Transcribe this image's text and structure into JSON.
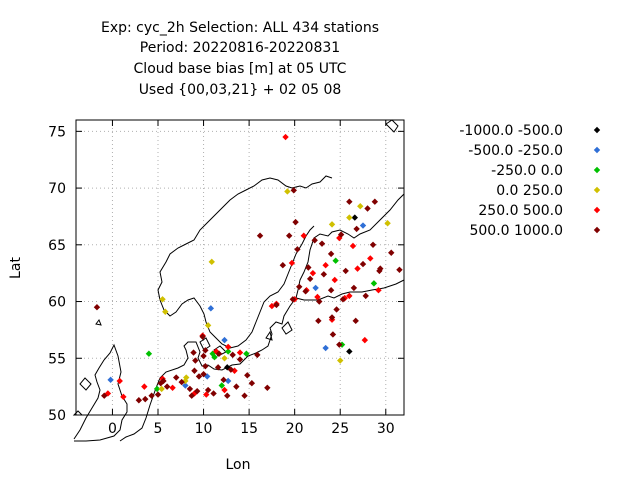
{
  "title_lines": [
    "Exp: cyc_2h   Selection: ALL    434 stations",
    "Period: 20220816-20220831",
    "Cloud base bias [m] at  05 UTC",
    "Used {00,03,21} + 02 05 08"
  ],
  "chart_data": {
    "type": "scatter",
    "xlabel": "Lon",
    "ylabel": "Lat",
    "xlim": [
      -4,
      32
    ],
    "ylim": [
      50,
      76
    ],
    "xticks": [
      0,
      5,
      10,
      15,
      20,
      25,
      30
    ],
    "yticks": [
      50,
      55,
      60,
      65,
      70,
      75
    ],
    "grid": true,
    "legend_position": "right",
    "series": [
      {
        "name": "-1000.0 -500.0",
        "color": "#000000",
        "points": [
          [
            26.6,
            67.4
          ],
          [
            26.0,
            55.6
          ],
          [
            12.6,
            54.2
          ]
        ]
      },
      {
        "name": "-500.0 -250.0",
        "color": "#2f6fd6",
        "points": [
          [
            -0.2,
            53.1
          ],
          [
            10.8,
            59.4
          ],
          [
            12.3,
            56.6
          ],
          [
            10.4,
            53.4
          ],
          [
            12.7,
            53.0
          ],
          [
            22.3,
            61.2
          ],
          [
            23.4,
            55.9
          ],
          [
            27.5,
            66.7
          ],
          [
            8.0,
            52.6
          ]
        ]
      },
      {
        "name": "-250.0 0.0",
        "color": "#00c000",
        "points": [
          [
            4.0,
            55.4
          ],
          [
            4.9,
            52.3
          ],
          [
            12.7,
            55.6
          ],
          [
            11.2,
            55.1
          ],
          [
            11.0,
            55.4
          ],
          [
            14.7,
            55.4
          ],
          [
            25.2,
            56.2
          ],
          [
            24.5,
            63.6
          ],
          [
            28.7,
            61.6
          ],
          [
            12.0,
            52.6
          ]
        ]
      },
      {
        "name": "0.0 250.0",
        "color": "#d0c000",
        "points": [
          [
            10.9,
            63.5
          ],
          [
            5.5,
            60.2
          ],
          [
            5.8,
            59.1
          ],
          [
            10.5,
            57.9
          ],
          [
            8.1,
            53.3
          ],
          [
            8.0,
            53.0
          ],
          [
            5.4,
            52.3
          ],
          [
            26.0,
            67.4
          ],
          [
            24.1,
            66.8
          ],
          [
            30.2,
            66.9
          ],
          [
            25.0,
            54.8
          ],
          [
            27.2,
            68.4
          ],
          [
            12.3,
            55.0
          ],
          [
            19.2,
            69.7
          ]
        ]
      },
      {
        "name": "250.0 500.0",
        "color": "#ff0000",
        "points": [
          [
            19.0,
            74.5
          ],
          [
            -0.5,
            51.9
          ],
          [
            0.8,
            53.0
          ],
          [
            1.2,
            51.6
          ],
          [
            3.5,
            52.5
          ],
          [
            5.5,
            53.2
          ],
          [
            6.6,
            52.4
          ],
          [
            9.0,
            51.9
          ],
          [
            10.3,
            51.8
          ],
          [
            12.3,
            52.2
          ],
          [
            13.4,
            53.9
          ],
          [
            11.4,
            55.6
          ],
          [
            14.0,
            55.5
          ],
          [
            18.0,
            59.8
          ],
          [
            20.0,
            60.2
          ],
          [
            21.3,
            61.0
          ],
          [
            22.0,
            62.5
          ],
          [
            22.5,
            60.4
          ],
          [
            23.4,
            63.2
          ],
          [
            24.4,
            61.9
          ],
          [
            25.5,
            60.3
          ],
          [
            26.4,
            64.9
          ],
          [
            27.7,
            56.6
          ],
          [
            26.9,
            62.9
          ],
          [
            24.9,
            65.6
          ],
          [
            28.3,
            63.8
          ],
          [
            29.2,
            61.0
          ],
          [
            21.0,
            65.8
          ],
          [
            24.1,
            58.4
          ],
          [
            26.0,
            60.5
          ],
          [
            19.7,
            63.4
          ],
          [
            17.5,
            59.6
          ],
          [
            9.9,
            57.0
          ],
          [
            12.7,
            56.0
          ]
        ]
      },
      {
        "name": "500.0 1000.0",
        "color": "#800000",
        "points": [
          [
            -1.7,
            59.5
          ],
          [
            -0.9,
            51.7
          ],
          [
            2.9,
            51.3
          ],
          [
            3.6,
            51.4
          ],
          [
            4.3,
            51.7
          ],
          [
            5.0,
            51.8
          ],
          [
            5.3,
            52.8
          ],
          [
            6.0,
            52.5
          ],
          [
            7.0,
            53.3
          ],
          [
            7.6,
            52.9
          ],
          [
            8.5,
            52.3
          ],
          [
            9.3,
            52.1
          ],
          [
            9.5,
            53.4
          ],
          [
            9.1,
            54.8
          ],
          [
            10.2,
            54.3
          ],
          [
            11.6,
            54.2
          ],
          [
            12.2,
            53.1
          ],
          [
            13.6,
            52.5
          ],
          [
            14.5,
            51.7
          ],
          [
            14.8,
            53.5
          ],
          [
            15.3,
            52.8
          ],
          [
            15.9,
            55.3
          ],
          [
            16.2,
            65.8
          ],
          [
            19.4,
            65.8
          ],
          [
            20.3,
            64.6
          ],
          [
            20.1,
            67.0
          ],
          [
            21.5,
            63.0
          ],
          [
            22.2,
            65.4
          ],
          [
            23.2,
            62.4
          ],
          [
            23.0,
            65.1
          ],
          [
            24.0,
            64.2
          ],
          [
            25.1,
            65.9
          ],
          [
            25.6,
            62.7
          ],
          [
            26.0,
            68.8
          ],
          [
            26.8,
            66.4
          ],
          [
            28.0,
            68.2
          ],
          [
            28.8,
            68.8
          ],
          [
            28.6,
            65.0
          ],
          [
            29.4,
            62.9
          ],
          [
            30.6,
            64.3
          ],
          [
            31.5,
            62.8
          ],
          [
            27.8,
            60.5
          ],
          [
            26.5,
            61.2
          ],
          [
            24.0,
            61.0
          ],
          [
            22.7,
            60.0
          ],
          [
            21.2,
            60.9
          ],
          [
            21.7,
            62.0
          ],
          [
            20.5,
            61.3
          ],
          [
            18.0,
            59.7
          ],
          [
            19.8,
            60.2
          ],
          [
            17.0,
            52.4
          ],
          [
            12.6,
            51.7
          ],
          [
            11.1,
            51.9
          ],
          [
            10.5,
            52.2
          ],
          [
            13.0,
            54.0
          ],
          [
            11.7,
            55.4
          ],
          [
            13.2,
            55.3
          ],
          [
            14.0,
            54.9
          ],
          [
            10.0,
            55.2
          ],
          [
            8.9,
            55.5
          ],
          [
            9.9,
            56.9
          ],
          [
            10.2,
            55.7
          ],
          [
            24.2,
            57.1
          ],
          [
            24.6,
            59.3
          ],
          [
            24.9,
            56.2
          ],
          [
            22.6,
            58.3
          ],
          [
            24.1,
            58.6
          ],
          [
            18.7,
            63.2
          ],
          [
            27.5,
            63.3
          ],
          [
            25.3,
            60.2
          ],
          [
            26.7,
            58.3
          ],
          [
            19.9,
            69.8
          ],
          [
            29.3,
            62.7
          ],
          [
            8.7,
            51.7
          ],
          [
            5.6,
            53.0
          ],
          [
            10.0,
            53.6
          ],
          [
            9.0,
            53.9
          ]
        ]
      }
    ]
  }
}
